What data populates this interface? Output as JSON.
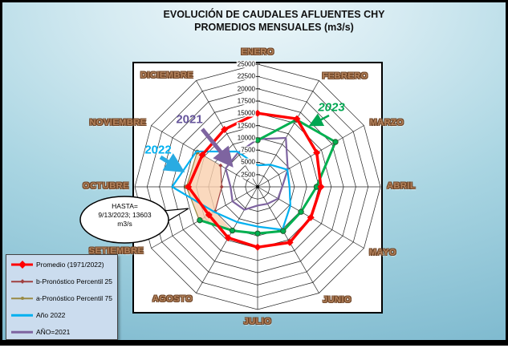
{
  "title": {
    "line1": "EVOLUCIÓN DE CAUDALES AFLUENTES CHY",
    "line2": "PROMEDIOS MENSUALES (m3/s)"
  },
  "chart_data": {
    "type": "radar",
    "categories": [
      "ENERO",
      "FEBRERO",
      "MARZO",
      "ABRIL",
      "MAYO",
      "JUNIO",
      "JULIO",
      "AGOSTO",
      "SETIEMBRE",
      "OCTUBRE",
      "NOVIEMBRE",
      "DICIEMBRE"
    ],
    "axis": {
      "min": 0,
      "max": 25000,
      "step": 2500,
      "tick_labels": [
        "2500",
        "5000",
        "7500",
        "10000",
        "12500",
        "15000",
        "17500",
        "20000",
        "22500",
        "25000"
      ],
      "unit": "m3/s",
      "grid": true
    },
    "series": [
      {
        "name": "Promedio (1971/2022)",
        "color": "#ff0000",
        "marker": "diamond",
        "width": 3.5,
        "values": [
          15000,
          16000,
          13900,
          12900,
          12500,
          13100,
          12300,
          12000,
          11450,
          14100,
          13000,
          13500
        ]
      },
      {
        "name": "b-Pronóstico Percentil 25",
        "color": "#a04040",
        "marker": "diamond-small",
        "width": 1.2,
        "values": [
          null,
          null,
          null,
          null,
          null,
          null,
          null,
          null,
          10000,
          7300,
          8700,
          null
        ]
      },
      {
        "name": "a-Pronóstico Percentil 75",
        "color": "#998a45",
        "marker": "circle-small",
        "width": 1.2,
        "values": [
          null,
          null,
          null,
          null,
          null,
          null,
          null,
          null,
          13700,
          14500,
          14200,
          null
        ]
      },
      {
        "name": "Año 2022",
        "color": "#00b0f0",
        "marker": "none",
        "width": 2.2,
        "values": [
          4400,
          5200,
          7000,
          6500,
          7700,
          10100,
          8100,
          8300,
          10200,
          17400,
          14400,
          8300
        ]
      },
      {
        "name": "AÑO=2021",
        "color": "#7e64a0",
        "marker": "none",
        "width": 2.2,
        "values": [
          9700,
          11500,
          7100,
          5000,
          4800,
          4000,
          3800,
          5400,
          5900,
          5500,
          7500,
          8000
        ]
      },
      {
        "name": "2023",
        "color": "#00b050",
        "marker": "circle",
        "width": 3,
        "values": [
          9500,
          15800,
          18300,
          12000,
          10200,
          10400,
          9500,
          10300,
          13603,
          null,
          null,
          null
        ]
      }
    ],
    "band": {
      "fill": "#f9cfae",
      "opacity": 0.8,
      "between": [
        "a-Pronóstico Percentil 75",
        "b-Pronóstico Percentil 25"
      ],
      "anchor_series": "2023",
      "anchor_month": "AGOSTO"
    },
    "legend_position": "bottom-left"
  },
  "legend": {
    "items": [
      {
        "label": "Promedio (1971/2022)"
      },
      {
        "label": "b-Pronóstico Percentil 25"
      },
      {
        "label": "a-Pronóstico Percentil 75"
      },
      {
        "label": "Año 2022"
      },
      {
        "label": "AÑO=2021"
      }
    ]
  },
  "annotations": [
    {
      "text": "2023",
      "color": "#00a651"
    },
    {
      "text": "2021",
      "color": "#66559b"
    },
    {
      "text": "2022",
      "color": "#00b0f0"
    }
  ],
  "callout": {
    "line1": "HASTA=",
    "line2": "9/13/2023;  13603",
    "line3": "m3/s"
  }
}
